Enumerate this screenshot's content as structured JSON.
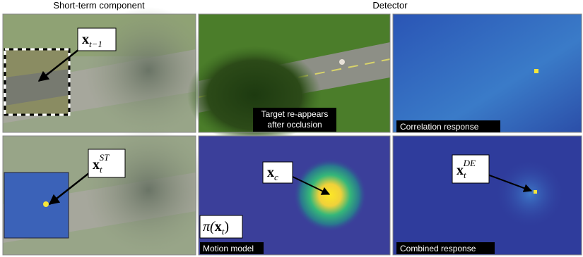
{
  "header": {
    "left": "Short-term component",
    "right": "Detector"
  },
  "captions": {
    "reappear": [
      "Target re-appears",
      "after occlusion"
    ],
    "correlation": "Correlation response",
    "motion": "Motion model",
    "combined": "Combined response"
  },
  "labels": {
    "x_prev": {
      "base": "x",
      "sub": "t−1"
    },
    "x_st": {
      "base": "x",
      "sub": "t",
      "sup": "ST"
    },
    "x_c": {
      "base": "x",
      "sub": "c"
    },
    "x_de": {
      "base": "x",
      "sub": "t",
      "sup": "DE"
    },
    "pi": {
      "open": "π(",
      "base": "x",
      "sub": "t",
      "close": ")"
    }
  }
}
